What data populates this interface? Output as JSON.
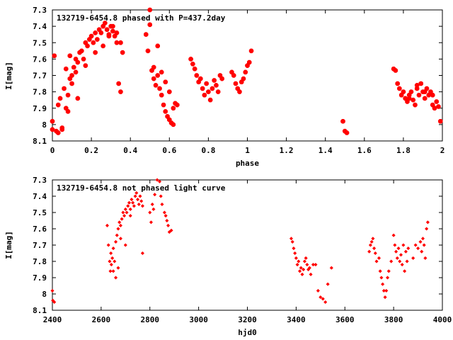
{
  "theme": {
    "point_color": "#ff0000",
    "frame_color": "#000000",
    "background": "#ffffff"
  },
  "chart_data": [
    {
      "type": "scatter",
      "title": "132719-6454.8 phased with P=437.2day",
      "xlabel": "phase",
      "ylabel": "I[mag]",
      "xlim": [
        0,
        2
      ],
      "ylim": [
        7.3,
        8.1
      ],
      "y_inverted": true,
      "grid": false,
      "legend": "none",
      "marker": "filled-octagon-large",
      "x_ticks": [
        0,
        0.2,
        0.4,
        0.6,
        0.8,
        1,
        1.2,
        1.4,
        1.6,
        1.8,
        2
      ],
      "x_tick_labels": [
        "0",
        "0.2",
        "0.4",
        "0.6",
        "0.8",
        "1",
        "1.2",
        "1.4",
        "1.6",
        "1.8",
        "2"
      ],
      "y_ticks": [
        7.3,
        7.4,
        7.5,
        7.6,
        7.7,
        7.8,
        7.9,
        8,
        8.1
      ],
      "y_tick_labels": [
        "7.3",
        "7.4",
        "7.5",
        "7.6",
        "7.7",
        "7.8",
        "7.9",
        "8",
        "8.1"
      ],
      "series": [
        {
          "x": [
            0.0,
            0.0,
            0.01,
            0.02,
            0.03,
            0.04,
            0.05,
            0.06,
            0.07,
            0.08,
            0.08,
            0.09,
            0.1,
            0.1,
            0.11,
            0.12,
            0.12,
            0.13,
            0.14,
            0.15,
            0.16,
            0.17,
            0.18,
            0.19,
            0.2,
            0.21,
            0.22,
            0.23,
            0.24,
            0.25,
            0.26,
            0.27,
            0.28,
            0.29,
            0.3,
            0.31,
            0.32,
            0.33,
            0.34,
            0.35,
            0.03,
            0.05,
            0.07,
            0.09,
            0.13,
            0.17,
            0.22,
            0.26,
            0.29,
            0.31,
            0.33,
            0.35,
            0.36,
            0.48,
            0.49,
            0.5,
            0.5,
            0.51,
            0.52,
            0.53,
            0.54,
            0.55,
            0.56,
            0.57,
            0.58,
            0.59,
            0.6,
            0.61,
            0.62,
            0.63,
            0.52,
            0.54,
            0.56,
            0.58,
            0.6,
            0.62,
            0.64,
            0.71,
            0.72,
            0.73,
            0.74,
            0.75,
            0.76,
            0.77,
            0.78,
            0.79,
            0.8,
            0.81,
            0.82,
            0.83,
            0.84,
            0.85,
            0.86,
            0.87,
            0.92,
            0.93,
            0.94,
            0.95,
            0.96,
            0.97,
            0.98,
            0.99,
            1.0,
            1.01,
            1.02,
            1.49,
            1.5,
            1.51,
            1.75,
            1.76,
            1.77,
            1.78,
            1.79,
            1.8,
            1.81,
            1.82,
            1.83,
            1.84,
            1.85,
            1.86,
            1.87,
            1.88,
            1.89,
            1.9,
            1.91,
            1.92,
            1.93,
            1.94,
            1.95,
            1.96,
            1.97,
            1.98,
            1.99,
            1.83,
            1.87,
            1.91,
            1.95
          ],
          "y": [
            7.98,
            8.03,
            7.58,
            8.04,
            8.05,
            7.84,
            8.03,
            7.78,
            7.9,
            7.82,
            7.92,
            7.72,
            7.75,
            7.7,
            7.65,
            7.6,
            7.68,
            7.62,
            7.56,
            7.55,
            7.6,
            7.5,
            7.52,
            7.48,
            7.46,
            7.5,
            7.44,
            7.48,
            7.42,
            7.44,
            7.4,
            7.38,
            7.42,
            7.45,
            7.4,
            7.43,
            7.46,
            7.5,
            7.75,
            7.8,
            7.88,
            8.02,
            7.66,
            7.58,
            7.84,
            7.64,
            7.56,
            7.52,
            7.46,
            7.4,
            7.44,
            7.5,
            7.56,
            7.45,
            7.55,
            7.39,
            7.3,
            7.67,
            7.72,
            7.76,
            7.52,
            7.78,
            7.82,
            7.88,
            7.92,
            7.95,
            7.97,
            7.99,
            8.0,
            7.87,
            7.65,
            7.7,
            7.68,
            7.74,
            7.8,
            7.9,
            7.88,
            7.6,
            7.63,
            7.66,
            7.7,
            7.74,
            7.72,
            7.78,
            7.82,
            7.75,
            7.8,
            7.85,
            7.78,
            7.73,
            7.76,
            7.8,
            7.7,
            7.72,
            7.68,
            7.7,
            7.75,
            7.78,
            7.8,
            7.74,
            7.72,
            7.68,
            7.64,
            7.62,
            7.55,
            7.98,
            8.04,
            8.05,
            7.66,
            7.67,
            7.75,
            7.78,
            7.82,
            7.8,
            7.84,
            7.86,
            7.82,
            7.8,
            7.85,
            7.88,
            7.78,
            7.82,
            7.75,
            7.8,
            7.84,
            7.78,
            7.82,
            7.8,
            7.88,
            7.9,
            7.86,
            7.89,
            7.98,
            7.84,
            7.76,
            7.8,
            7.82
          ]
        }
      ]
    },
    {
      "type": "scatter",
      "title": "132719-6454.8 not phased light curve",
      "xlabel": "hjd0",
      "ylabel": "I[mag]",
      "xlim": [
        2400,
        4000
      ],
      "ylim": [
        7.3,
        8.1
      ],
      "y_inverted": true,
      "grid": false,
      "legend": "none",
      "marker": "small-diamond",
      "x_ticks": [
        2400,
        2600,
        2800,
        3000,
        3200,
        3400,
        3600,
        3800,
        4000
      ],
      "x_tick_labels": [
        "2400",
        "2600",
        "2800",
        "3000",
        "3200",
        "3400",
        "3600",
        "3800",
        "4000"
      ],
      "y_ticks": [
        7.3,
        7.4,
        7.5,
        7.6,
        7.7,
        7.8,
        7.9,
        8,
        8.1
      ],
      "y_tick_labels": [
        "7.3",
        "7.4",
        "7.5",
        "7.6",
        "7.7",
        "7.8",
        "7.9",
        "8",
        "8.1"
      ],
      "series": [
        {
          "x": [
            2400,
            2402,
            2408,
            2625,
            2630,
            2635,
            2638,
            2642,
            2646,
            2650,
            2655,
            2660,
            2665,
            2670,
            2675,
            2680,
            2685,
            2690,
            2695,
            2700,
            2705,
            2710,
            2715,
            2720,
            2725,
            2730,
            2735,
            2740,
            2745,
            2750,
            2755,
            2760,
            2765,
            2770,
            2800,
            2805,
            2810,
            2815,
            2820,
            2830,
            2840,
            2845,
            2850,
            2860,
            2865,
            2870,
            2875,
            2880,
            2888,
            2640,
            2650,
            2660,
            2670,
            2680,
            2700,
            2720,
            2770,
            3380,
            3385,
            3390,
            3395,
            3400,
            3405,
            3410,
            3415,
            3420,
            3425,
            3430,
            3435,
            3440,
            3445,
            3450,
            3455,
            3460,
            3470,
            3480,
            3490,
            3500,
            3510,
            3520,
            3530,
            3545,
            3700,
            3705,
            3710,
            3715,
            3720,
            3725,
            3730,
            3740,
            3745,
            3750,
            3755,
            3760,
            3765,
            3770,
            3775,
            3780,
            3790,
            3800,
            3805,
            3810,
            3815,
            3820,
            3825,
            3830,
            3835,
            3840,
            3845,
            3850,
            3855,
            3860,
            3880,
            3890,
            3900,
            3910,
            3915,
            3920,
            3925,
            3930,
            3935,
            3940
          ],
          "y": [
            7.98,
            8.04,
            8.05,
            7.58,
            7.7,
            7.8,
            7.86,
            7.82,
            7.78,
            7.72,
            7.8,
            7.68,
            7.64,
            7.6,
            7.56,
            7.58,
            7.54,
            7.5,
            7.52,
            7.48,
            7.5,
            7.46,
            7.44,
            7.48,
            7.42,
            7.44,
            7.46,
            7.4,
            7.38,
            7.42,
            7.45,
            7.4,
            7.43,
            7.46,
            7.5,
            7.56,
            7.45,
            7.48,
            7.39,
            7.3,
            7.31,
            7.4,
            7.45,
            7.5,
            7.52,
            7.55,
            7.58,
            7.62,
            7.61,
            7.75,
            7.86,
            7.9,
            7.84,
            7.66,
            7.7,
            7.52,
            7.75,
            7.66,
            7.68,
            7.72,
            7.75,
            7.78,
            7.82,
            7.8,
            7.86,
            7.84,
            7.88,
            7.85,
            7.8,
            7.78,
            7.82,
            7.85,
            7.84,
            7.88,
            7.82,
            7.82,
            7.98,
            8.02,
            8.03,
            8.05,
            7.94,
            7.84,
            7.74,
            7.7,
            7.68,
            7.66,
            7.72,
            7.75,
            7.8,
            7.78,
            7.86,
            7.9,
            7.94,
            7.98,
            8.02,
            7.98,
            7.9,
            7.86,
            7.8,
            7.64,
            7.7,
            7.74,
            7.78,
            7.72,
            7.8,
            7.76,
            7.82,
            7.7,
            7.86,
            7.74,
            7.8,
            7.72,
            7.78,
            7.7,
            7.72,
            7.68,
            7.74,
            7.66,
            7.7,
            7.78,
            7.6,
            7.56
          ]
        }
      ]
    }
  ]
}
